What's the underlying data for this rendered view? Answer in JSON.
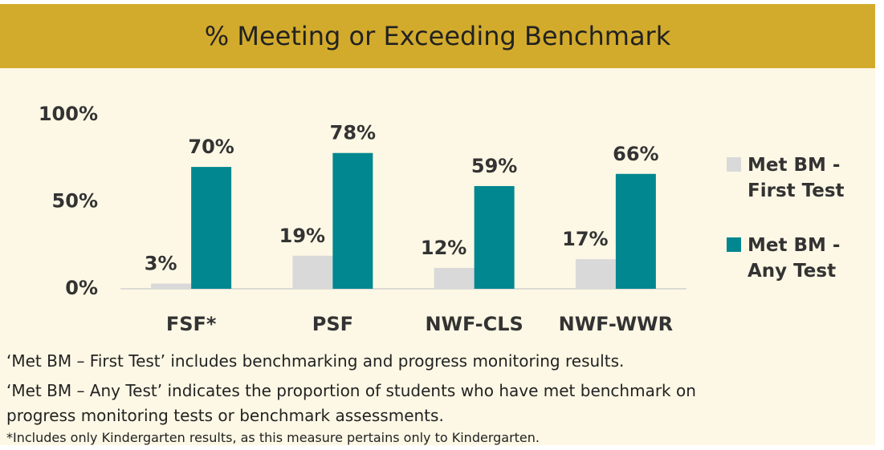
{
  "chart_data": {
    "type": "bar",
    "title": "% Meeting or Exceeding Benchmark",
    "categories": [
      "FSF*",
      "PSF",
      "NWF-CLS",
      "NWF-WWR"
    ],
    "series": [
      {
        "name": "Met BM - First Test",
        "color": "#d9d9d9",
        "values": [
          3,
          19,
          12,
          17
        ],
        "value_labels": [
          "3%",
          "19%",
          "12%",
          "17%"
        ]
      },
      {
        "name": "Met BM - Any Test",
        "color": "#00878f",
        "values": [
          70,
          78,
          59,
          66
        ],
        "value_labels": [
          "70%",
          "78%",
          "59%",
          "66%"
        ]
      }
    ],
    "ylim": [
      0,
      100
    ],
    "yticks": [
      {
        "value": 0,
        "label": "0%"
      },
      {
        "value": 50,
        "label": "50%"
      },
      {
        "value": 100,
        "label": "100%"
      }
    ],
    "grid": false,
    "legend": "right",
    "notes": [
      "‘Met BM – First Test’ includes benchmarking and progress monitoring results.",
      "‘Met BM – Any Test’ indicates the proportion of students who have met benchmark on progress monitoring tests or benchmark assessments.",
      "*Includes only Kindergarten results, as this measure pertains only to Kindergarten."
    ]
  }
}
